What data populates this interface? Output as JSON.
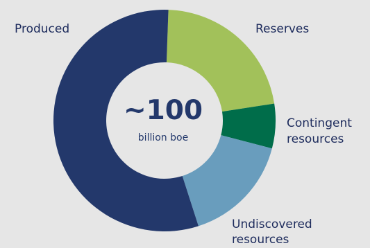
{
  "chart_data": {
    "type": "pie",
    "variant": "donut",
    "center_value": "~100",
    "center_unit": "billion boe",
    "slices": [
      {
        "label": "Produced",
        "value": 55.5,
        "color": "#23386b"
      },
      {
        "label": "Reserves",
        "value": 22.0,
        "color": "#a2c15a"
      },
      {
        "label": "Contingent resources",
        "value": 6.5,
        "color": "#006d4a"
      },
      {
        "label": "Undiscovered resources",
        "value": 16.0,
        "color": "#699dbd"
      }
    ]
  },
  "labels": {
    "produced": "Produced",
    "reserves": "Reserves",
    "contingent_1": "Contingent",
    "contingent_2": "resources",
    "undiscovered_1": "Undiscovered",
    "undiscovered_2": "resources"
  }
}
